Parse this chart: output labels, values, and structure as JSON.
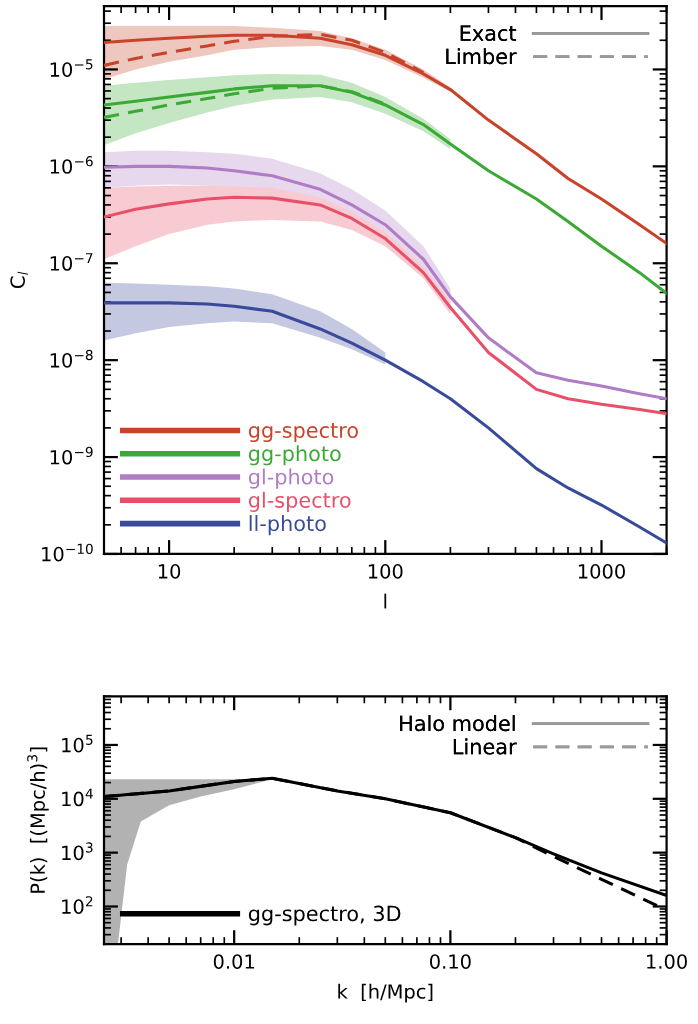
{
  "chart_data": [
    {
      "type": "line",
      "xlabel": "l",
      "ylabel": "C$_{l}$",
      "log": "xy",
      "xlim": [
        5,
        2000
      ],
      "ylim": [
        1e-10,
        4.5e-05
      ],
      "xticks": [
        10,
        100,
        1000
      ],
      "yticks": [
        {
          "value": 1e-10,
          "label": "10$^{−10}$"
        },
        {
          "value": 1e-09,
          "label": "10$^{−9}$"
        },
        {
          "value": 1e-08,
          "label": "10$^{−8}$"
        },
        {
          "value": 1e-07,
          "label": "10$^{−7}$"
        },
        {
          "value": 1e-06,
          "label": "10$^{−6}$"
        },
        {
          "value": 1e-05,
          "label": "10$^{−5}$"
        }
      ],
      "legend": "bottom left",
      "grid": false,
      "annotations": [
        "Exact",
        "Limber"
      ],
      "series": [
        {
          "color": "#c8432a",
          "line_style": "dashed",
          "x": [
            5,
            7,
            10,
            15,
            20,
            30,
            50,
            70,
            100,
            150
          ],
          "values": [
            1.1e-05,
            1.3e-05,
            1.5e-05,
            1.75e-05,
            1.95e-05,
            2.2e-05,
            2.3e-05,
            2e-05,
            1.5e-05,
            9.3e-06
          ]
        },
        {
          "color": "#3aaa35",
          "line_style": "dashed",
          "x": [
            5,
            7,
            10,
            15,
            20,
            30,
            50,
            70,
            100
          ],
          "values": [
            3.2e-06,
            3.7e-06,
            4.3e-06,
            5e-06,
            5.6e-06,
            6.4e-06,
            6.8e-06,
            5.9e-06,
            4.4e-06
          ]
        },
        {
          "name": "gg-spectro",
          "color": "#c8432a",
          "x": [
            5,
            7,
            10,
            15,
            20,
            30,
            50,
            70,
            100,
            150,
            200,
            300,
            500,
            700,
            1000,
            1500,
            2000
          ],
          "values": [
            1.9e-05,
            2e-05,
            2.1e-05,
            2.2e-05,
            2.25e-05,
            2.25e-05,
            2.1e-05,
            1.8e-05,
            1.4e-05,
            9e-06,
            6.2e-06,
            3e-06,
            1.35e-06,
            7.5e-07,
            4.6e-07,
            2.5e-07,
            1.6e-07
          ],
          "lower": [
            7.9e-06,
            1e-05,
            1.2e-05,
            1.4e-05,
            1.6e-05,
            1.7e-05,
            1.75e-05,
            1.6e-05,
            1.25e-05,
            8.2e-06,
            5.9e-06,
            null,
            null,
            null,
            null,
            null,
            null
          ],
          "upper": [
            2.8e-05,
            2.8e-05,
            2.8e-05,
            2.8e-05,
            2.8e-05,
            2.7e-05,
            2.5e-05,
            2.1e-05,
            1.6e-05,
            1e-05,
            6.5e-06,
            null,
            null,
            null,
            null,
            null,
            null
          ]
        },
        {
          "name": "gg-photo",
          "color": "#3aaa35",
          "x": [
            5,
            7,
            10,
            15,
            20,
            30,
            50,
            70,
            100,
            150,
            200,
            300,
            500,
            700,
            1000,
            1500,
            2000
          ],
          "values": [
            4.3e-06,
            4.7e-06,
            5.2e-06,
            5.8e-06,
            6.3e-06,
            6.8e-06,
            6.8e-06,
            5.8e-06,
            4.3e-06,
            2.7e-06,
            1.7e-06,
            9e-07,
            4.6e-07,
            2.7e-07,
            1.5e-07,
            8e-08,
            4.9e-08
          ],
          "lower": [
            1.65e-06,
            2.2e-06,
            2.8e-06,
            3.6e-06,
            4.2e-06,
            4.9e-06,
            5.2e-06,
            4.6e-06,
            3.5e-06,
            2.3e-06,
            1.5e-06,
            null,
            null,
            null,
            null,
            null,
            null
          ],
          "upper": [
            6.8e-06,
            7.3e-06,
            7.8e-06,
            8.3e-06,
            8.7e-06,
            9e-06,
            8.8e-06,
            7.3e-06,
            5.2e-06,
            3.1e-06,
            1.9e-06,
            null,
            null,
            null,
            null,
            null,
            null
          ]
        },
        {
          "name": "gl-photo",
          "color": "#b07cc6",
          "x": [
            5,
            7,
            10,
            15,
            20,
            30,
            50,
            70,
            100,
            150,
            200,
            300,
            500,
            700,
            1000,
            1500,
            2000
          ],
          "values": [
            9.8e-07,
            1e-06,
            1e-06,
            9.6e-07,
            9e-07,
            8e-07,
            5.8e-07,
            4e-07,
            2.5e-07,
            1.1e-07,
            4.5e-08,
            1.7e-08,
            7.4e-09,
            6.2e-09,
            5.4e-09,
            4.5e-09,
            4e-09
          ],
          "lower": [
            6e-07,
            6.3e-07,
            6.5e-07,
            6.3e-07,
            6e-07,
            5.4e-07,
            4e-07,
            2.9e-07,
            1.8e-07,
            8e-08,
            3.6e-08,
            null,
            null,
            null,
            null,
            null,
            null
          ],
          "upper": [
            1.4e-06,
            1.45e-06,
            1.45e-06,
            1.4e-06,
            1.35e-06,
            1.2e-06,
            8.5e-07,
            5.8e-07,
            3.5e-07,
            1.5e-07,
            5.5e-08,
            null,
            null,
            null,
            null,
            null,
            null
          ]
        },
        {
          "name": "gl-spectro",
          "color": "#e8506a",
          "x": [
            5,
            7,
            10,
            15,
            20,
            30,
            50,
            70,
            100,
            150,
            200,
            300,
            500,
            700,
            1000,
            1500,
            2000
          ],
          "values": [
            3e-07,
            3.6e-07,
            4.1e-07,
            4.6e-07,
            4.8e-07,
            4.7e-07,
            4e-07,
            2.9e-07,
            1.8e-07,
            8e-08,
            3.5e-08,
            1.2e-08,
            5e-09,
            4e-09,
            3.5e-09,
            3.1e-09,
            2.8e-09
          ],
          "lower": [
            1.1e-07,
            1.5e-07,
            2e-07,
            2.5e-07,
            2.7e-07,
            2.8e-07,
            2.7e-07,
            2.2e-07,
            1.5e-07,
            7e-08,
            3e-08,
            null,
            null,
            null,
            null,
            null,
            null
          ],
          "upper": [
            6e-07,
            6.2e-07,
            6.3e-07,
            6.3e-07,
            6.2e-07,
            6e-07,
            4.8e-07,
            3.4e-07,
            2.1e-07,
            9.2e-08,
            4e-08,
            null,
            null,
            null,
            null,
            null,
            null
          ]
        },
        {
          "name": "ll-photo",
          "color": "#3a4a9a",
          "x": [
            5,
            7,
            10,
            15,
            20,
            30,
            50,
            70,
            100,
            150,
            200,
            300,
            500,
            700,
            1000,
            1500,
            2000
          ],
          "values": [
            3.9e-08,
            3.9e-08,
            3.9e-08,
            3.8e-08,
            3.6e-08,
            3.2e-08,
            2.1e-08,
            1.5e-08,
            1e-08,
            6e-09,
            4e-09,
            2e-09,
            7.6e-10,
            4.8e-10,
            3.2e-10,
            1.9e-10,
            1.3e-10
          ],
          "lower": [
            1.6e-08,
            1.9e-08,
            2.2e-08,
            2.4e-08,
            2.5e-08,
            2.4e-08,
            1.7e-08,
            1.3e-08,
            9e-09,
            null,
            null,
            null,
            null,
            null,
            null,
            null,
            null
          ],
          "upper": [
            6.3e-08,
            6.2e-08,
            6e-08,
            5.8e-08,
            5.5e-08,
            4.8e-08,
            3.2e-08,
            2.1e-08,
            1.2e-08,
            null,
            null,
            null,
            null,
            null,
            null,
            null,
            null
          ]
        }
      ]
    },
    {
      "type": "line",
      "xlabel": "k  [h/Mpc]",
      "ylabel": "P(k)  [(Mpc/h)$^{3}$]",
      "log": "xy",
      "xlim": [
        0.0025,
        1.0
      ],
      "ylim": [
        20,
        800000.0
      ],
      "xticks": [
        0.01,
        {
          "value": 0.1,
          "label": "0.10"
        },
        {
          "value": 1.0,
          "label": "1.00"
        }
      ],
      "yticks": [
        {
          "value": 100,
          "label": "10$^{2}$"
        },
        {
          "value": 1000,
          "label": "10$^{3}$"
        },
        {
          "value": 10000,
          "label": "10$^{4}$"
        },
        {
          "value": 100000,
          "label": "10$^{5}$"
        }
      ],
      "legend": "bottom left",
      "grid": false,
      "annotations": [
        "Halo model",
        "Linear"
      ],
      "series": [
        {
          "color": "#000000",
          "line_style": "dashed",
          "x": [
            0.0025,
            0.005,
            0.01,
            0.015,
            0.03,
            0.05,
            0.1,
            0.2,
            0.3,
            0.5,
            1.0
          ],
          "values": [
            11000.0,
            14000.0,
            21000.0,
            24000.0,
            14000.0,
            10000.0,
            5500.0,
            1900.0,
            850,
            320,
            85
          ]
        },
        {
          "name": "gg-spectro, 3D",
          "color": "#000000",
          "x": [
            0.0025,
            0.0029,
            0.0032,
            0.0037,
            0.005,
            0.007,
            0.01,
            0.015,
            0.03,
            0.05,
            0.1,
            0.2,
            0.3,
            0.5,
            1.0
          ],
          "values": [
            11000.0,
            11500.0,
            12000.0,
            12500.0,
            14000.0,
            17000.0,
            21000.0,
            24000.0,
            14000.0,
            10000.0,
            5500.0,
            1900.0,
            950,
            420,
            160
          ],
          "lower": [
            20,
            20,
            600,
            3800,
            7600,
            11000.0,
            15000.0,
            23000.0,
            null,
            null,
            null,
            null,
            null,
            null,
            null
          ],
          "upper": [
            23000.0,
            23000.0,
            23000.0,
            23000.0,
            23000.0,
            23000.0,
            23000.0,
            24000.0,
            null,
            null,
            null,
            null,
            null,
            null,
            null
          ]
        }
      ]
    }
  ]
}
